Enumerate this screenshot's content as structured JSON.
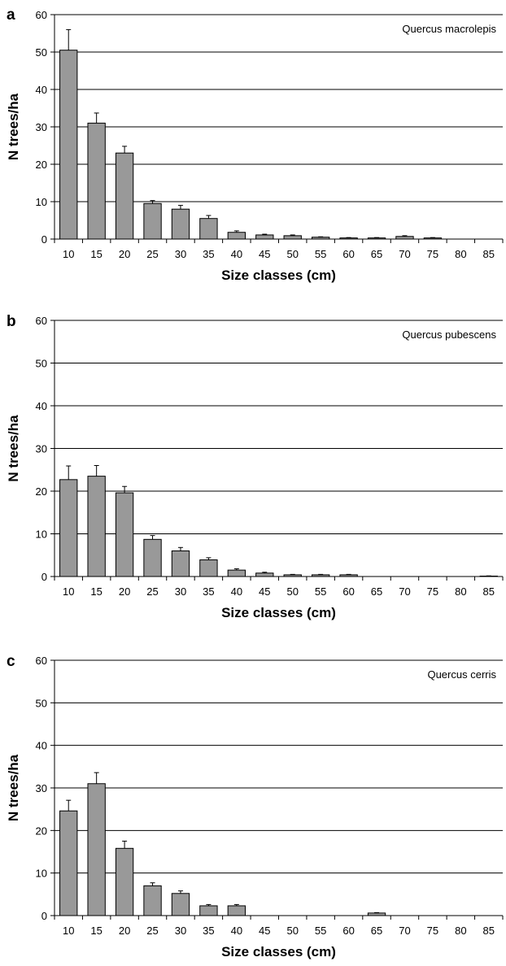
{
  "chart_data": [
    {
      "panel": "a",
      "type": "bar",
      "annotation": "Quercus macrolepis",
      "xlabel": "Size classes (cm)",
      "ylabel": "N trees/ha",
      "ylim": [
        0,
        60
      ],
      "yticks": [
        0,
        10,
        20,
        30,
        40,
        50,
        60
      ],
      "grid": "horizontal",
      "bar_color": "#999999",
      "categories": [
        "10",
        "15",
        "20",
        "25",
        "30",
        "35",
        "40",
        "45",
        "50",
        "55",
        "60",
        "65",
        "70",
        "75",
        "80",
        "85"
      ],
      "values": [
        50.5,
        31,
        23,
        9.5,
        8,
        5.5,
        1.8,
        1.1,
        0.9,
        0.5,
        0.3,
        0.3,
        0.7,
        0.3,
        0,
        0
      ],
      "errors": [
        5.5,
        2.7,
        1.8,
        0.8,
        1.0,
        0.8,
        0.4,
        0.2,
        0.2,
        0.1,
        0.1,
        0.1,
        0.2,
        0.1,
        0,
        0
      ]
    },
    {
      "panel": "b",
      "type": "bar",
      "annotation": "Quercus pubescens",
      "xlabel": "Size classes (cm)",
      "ylabel": "N trees/ha",
      "ylim": [
        0,
        60
      ],
      "yticks": [
        0,
        10,
        20,
        30,
        40,
        50,
        60
      ],
      "grid": "horizontal",
      "bar_color": "#999999",
      "categories": [
        "10",
        "15",
        "20",
        "25",
        "30",
        "35",
        "40",
        "45",
        "50",
        "55",
        "60",
        "65",
        "70",
        "75",
        "80",
        "85"
      ],
      "values": [
        22.7,
        23.5,
        19.6,
        8.7,
        6.0,
        3.9,
        1.5,
        0.8,
        0.4,
        0.4,
        0.4,
        0,
        0,
        0,
        0,
        0.1
      ],
      "errors": [
        3.2,
        2.5,
        1.5,
        0.9,
        0.8,
        0.5,
        0.3,
        0.2,
        0.1,
        0.1,
        0.1,
        0,
        0,
        0,
        0,
        0.05
      ]
    },
    {
      "panel": "c",
      "type": "bar",
      "annotation": "Quercus cerris",
      "xlabel": "Size classes (cm)",
      "ylabel": "N trees/ha",
      "ylim": [
        0,
        60
      ],
      "yticks": [
        0,
        10,
        20,
        30,
        40,
        50,
        60
      ],
      "grid": "horizontal",
      "bar_color": "#999999",
      "categories": [
        "10",
        "15",
        "20",
        "25",
        "30",
        "35",
        "40",
        "45",
        "50",
        "55",
        "60",
        "65",
        "70",
        "75",
        "80",
        "85"
      ],
      "values": [
        24.6,
        31.0,
        15.8,
        7.0,
        5.2,
        2.3,
        2.3,
        0,
        0,
        0,
        0,
        0.6,
        0,
        0,
        0,
        0
      ],
      "errors": [
        2.5,
        2.6,
        1.7,
        0.7,
        0.6,
        0.3,
        0.3,
        0,
        0,
        0,
        0,
        0.1,
        0,
        0,
        0,
        0
      ]
    }
  ]
}
